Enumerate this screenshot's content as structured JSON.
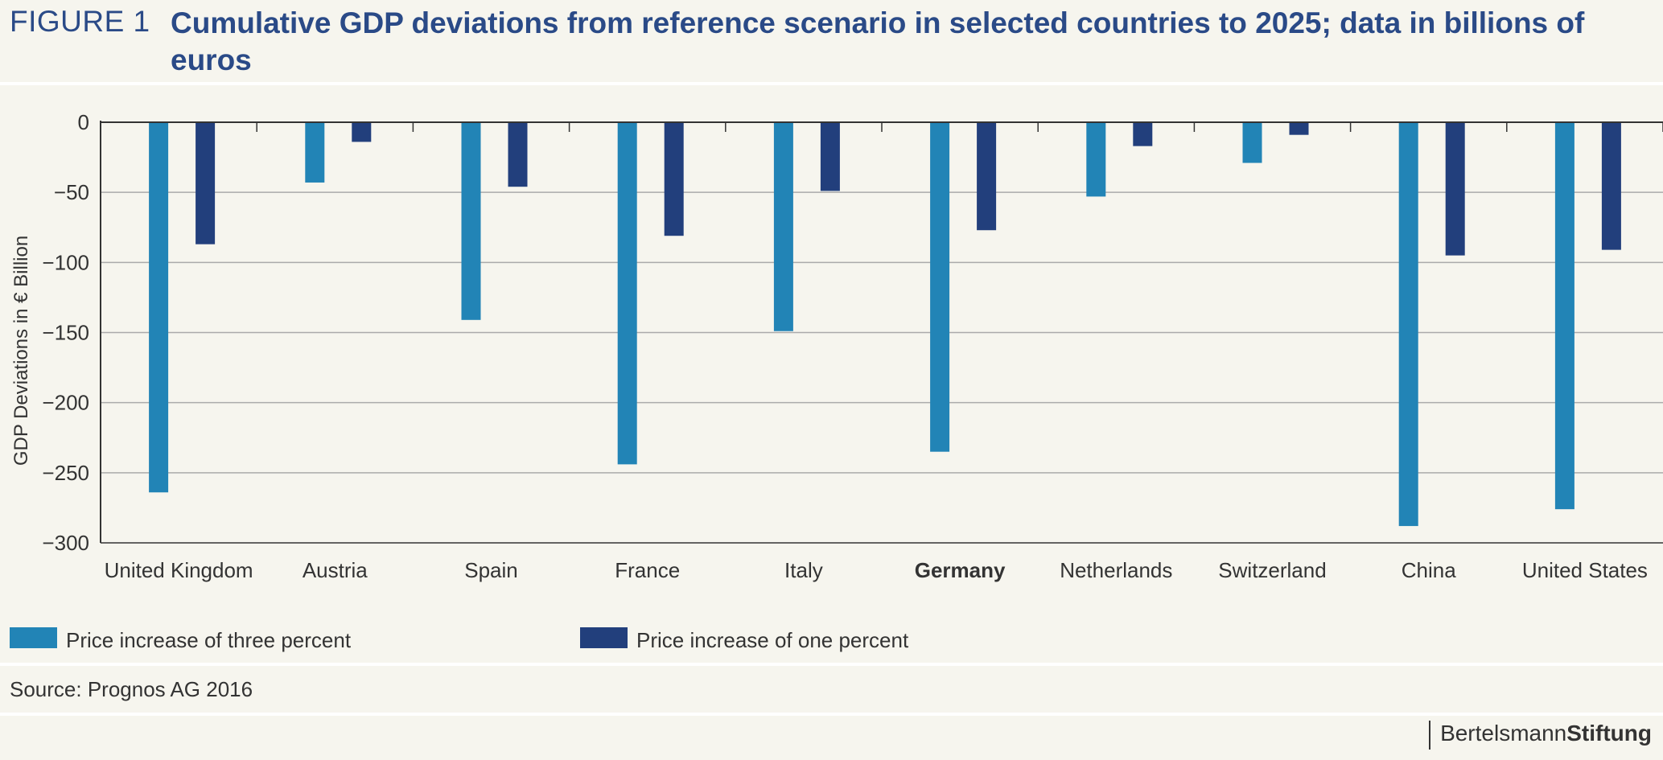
{
  "header": {
    "figure_label": "FIGURE 1",
    "title": "Cumulative GDP deviations from reference scenario in selected countries to 2025; data in billions of euros"
  },
  "chart_data": {
    "type": "bar",
    "title": "Cumulative GDP deviations from reference scenario in selected countries to 2025; data in billions of euros",
    "xlabel": "",
    "ylabel": "GDP Deviations in € Billion",
    "ylim": [
      -300,
      0
    ],
    "yticks": [
      0,
      -50,
      -100,
      -150,
      -200,
      -250,
      -300
    ],
    "ytick_labels": [
      "0",
      "−50",
      "−100",
      "−150",
      "−200",
      "−250",
      "−300"
    ],
    "grid": true,
    "legend_position": "bottom",
    "categories": [
      "United Kingdom",
      "Austria",
      "Spain",
      "France",
      "Italy",
      "Germany",
      "Netherlands",
      "Switzerland",
      "China",
      "United States"
    ],
    "highlight_category": "Germany",
    "series": [
      {
        "name": "Price increase of three percent",
        "color": "#2284b6",
        "values": [
          -264,
          -43,
          -141,
          -244,
          -149,
          -235,
          -53,
          -29,
          -288,
          -276
        ]
      },
      {
        "name": "Price increase of one percent",
        "color": "#223f7c",
        "values": [
          -87,
          -14,
          -46,
          -81,
          -49,
          -77,
          -17,
          -9,
          -95,
          -91
        ]
      }
    ]
  },
  "source": "Source: Prognos AG 2016",
  "brand": {
    "regular": "Bertelsmann",
    "bold": "Stiftung"
  }
}
